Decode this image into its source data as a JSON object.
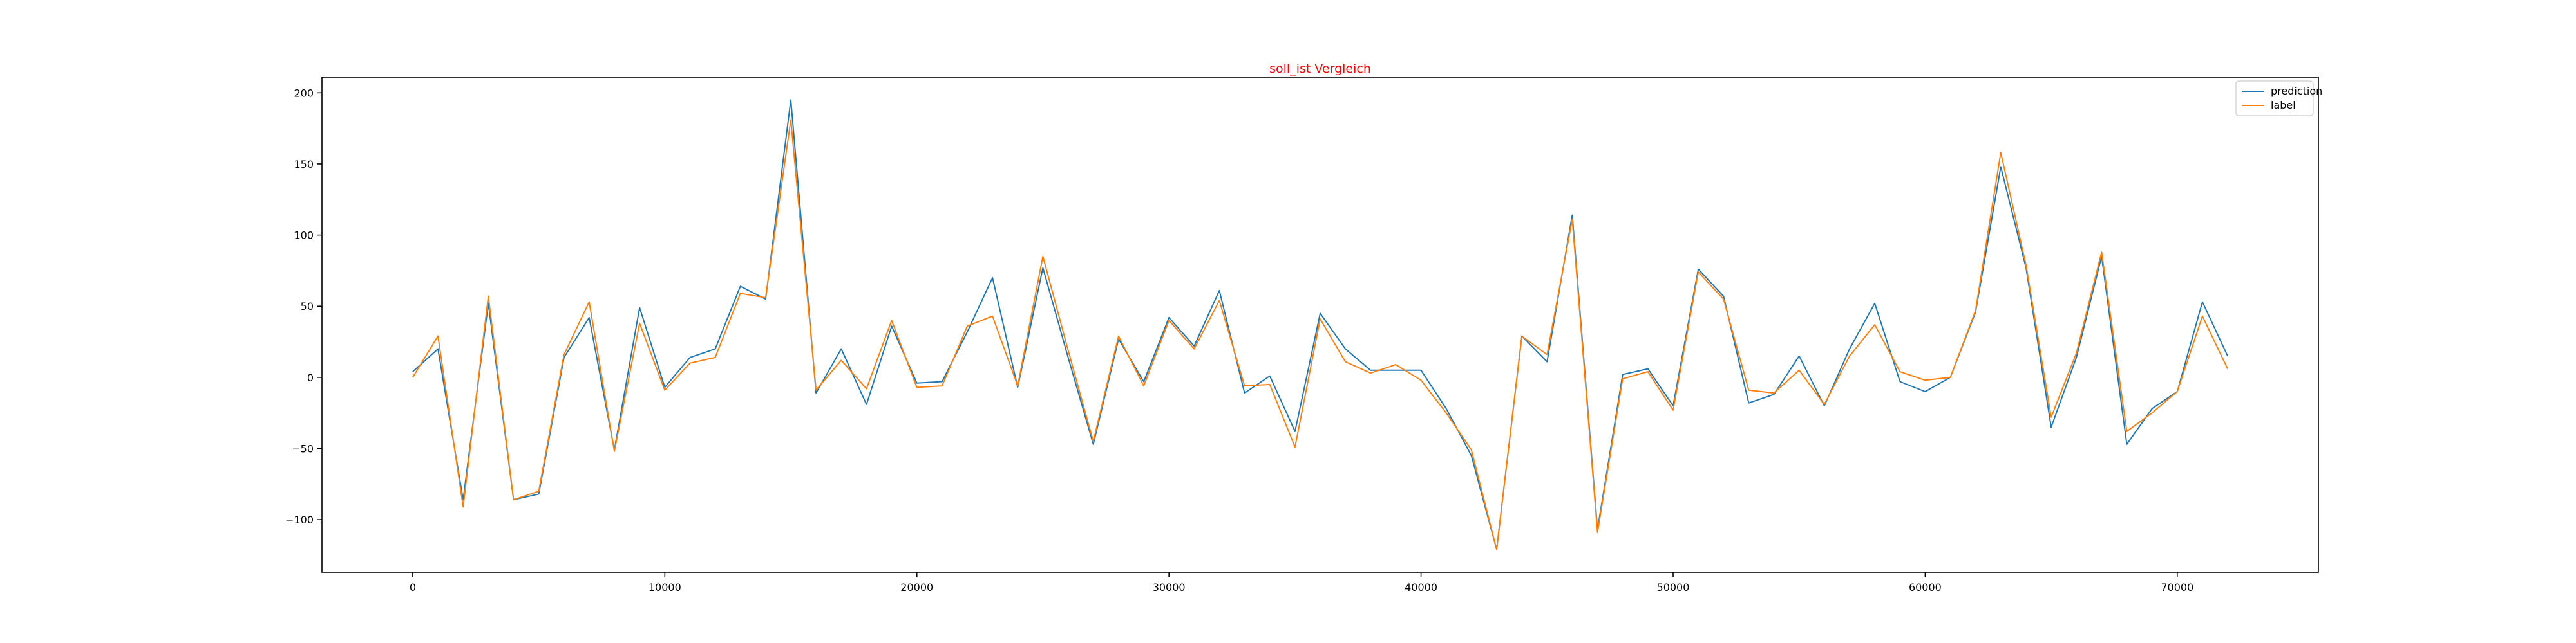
{
  "chart_data": {
    "type": "line",
    "title": "soll_ist Vergleich",
    "title_color": "#ff0000",
    "xlabel": "",
    "ylabel": "",
    "xlim": [
      -3600,
      75600
    ],
    "ylim": [
      -137,
      211
    ],
    "xticks": [
      0,
      10000,
      20000,
      30000,
      40000,
      50000,
      60000,
      70000
    ],
    "yticks": [
      -100,
      -50,
      0,
      50,
      100,
      150,
      200
    ],
    "grid": false,
    "legend_position": "top-right",
    "x": [
      0,
      1000,
      2000,
      3000,
      4000,
      5000,
      6000,
      7000,
      8000,
      9000,
      10000,
      11000,
      12000,
      13000,
      14000,
      15000,
      16000,
      17000,
      18000,
      19000,
      20000,
      21000,
      22000,
      23000,
      24000,
      25000,
      26000,
      27000,
      28000,
      29000,
      30000,
      31000,
      32000,
      33000,
      34000,
      35000,
      36000,
      37000,
      38000,
      39000,
      40000,
      41000,
      42000,
      43000,
      44000,
      45000,
      46000,
      47000,
      48000,
      49000,
      50000,
      51000,
      52000,
      53000,
      54000,
      55000,
      56000,
      57000,
      58000,
      59000,
      60000,
      61000,
      62000,
      63000,
      64000,
      65000,
      66000,
      67000,
      68000,
      69000,
      70000,
      71000,
      72000
    ],
    "series": [
      {
        "name": "prediction",
        "color": "#1f77b4",
        "values": [
          4,
          20,
          -86,
          52,
          -86,
          -82,
          14,
          42,
          -51,
          49,
          -7,
          14,
          20,
          64,
          55,
          195,
          -11,
          20,
          -19,
          36,
          -4,
          -3,
          32,
          70,
          -7,
          77,
          14,
          -47,
          27,
          -3,
          42,
          22,
          61,
          -11,
          1,
          -38,
          45,
          20,
          5,
          5,
          5,
          -22,
          -55,
          -121,
          29,
          11,
          114,
          -107,
          2,
          6,
          -20,
          76,
          57,
          -18,
          -12,
          15,
          -20,
          20,
          52,
          -3,
          -10,
          0,
          46,
          148,
          77,
          -35,
          14,
          85,
          -47,
          -22,
          -10,
          53,
          15
        ]
      },
      {
        "name": "label",
        "color": "#ff7f0e",
        "values": [
          0,
          29,
          -91,
          57,
          -86,
          -80,
          16,
          53,
          -52,
          38,
          -9,
          10,
          14,
          59,
          56,
          181,
          -9,
          12,
          -8,
          40,
          -7,
          -6,
          36,
          43,
          -6,
          85,
          19,
          -45,
          29,
          -6,
          40,
          20,
          54,
          -6,
          -5,
          -49,
          41,
          11,
          3,
          9,
          -2,
          -25,
          -51,
          -121,
          29,
          16,
          111,
          -109,
          -1,
          4,
          -23,
          74,
          55,
          -9,
          -11,
          5,
          -19,
          15,
          37,
          4,
          -2,
          0,
          47,
          158,
          79,
          -28,
          17,
          88,
          -38,
          -25,
          -10,
          43,
          6
        ]
      }
    ]
  }
}
